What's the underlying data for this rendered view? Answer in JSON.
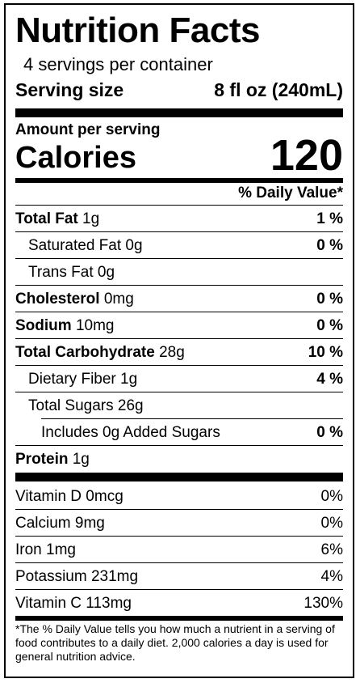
{
  "label": {
    "title": "Nutrition Facts",
    "servings_per_container": "4 servings per container",
    "serving_size_label": "Serving size",
    "serving_size_value": "8 fl oz (240mL)",
    "amount_per_serving": "Amount per serving",
    "calories_label": "Calories",
    "calories_value": "120",
    "dv_header": "% Daily Value*"
  },
  "nutrients": [
    {
      "name": "Total Fat",
      "amount": "1g",
      "dv": "1 %"
    },
    {
      "name": "Saturated Fat",
      "amount": "0g",
      "dv": "0 %"
    },
    {
      "name": "Trans Fat",
      "amount": "0g",
      "dv": ""
    },
    {
      "name": "Cholesterol",
      "amount": "0mg",
      "dv": "0 %"
    },
    {
      "name": "Sodium",
      "amount": "10mg",
      "dv": "0 %"
    },
    {
      "name": "Total Carbohydrate",
      "amount": "28g",
      "dv": "10 %"
    },
    {
      "name": "Dietary Fiber",
      "amount": "1g",
      "dv": "4 %"
    },
    {
      "name": "Total Sugars",
      "amount": "26g",
      "dv": ""
    },
    {
      "name": "Includes 0g Added Sugars",
      "amount": "",
      "dv": "0 %"
    },
    {
      "name": "Protein",
      "amount": "1g",
      "dv": ""
    }
  ],
  "vitamins": [
    {
      "name": "Vitamin D",
      "amount": "0mcg",
      "dv": "0%"
    },
    {
      "name": "Calcium",
      "amount": "9mg",
      "dv": "0%"
    },
    {
      "name": "Iron",
      "amount": "1mg",
      "dv": "6%"
    },
    {
      "name": "Potassium",
      "amount": "231mg",
      "dv": "4%"
    },
    {
      "name": "Vitamin C",
      "amount": "113mg",
      "dv": "130%"
    }
  ],
  "footnote": "*The % Daily Value tells you how much a nutrient in a serving of food contributes to a daily diet. 2,000 calories a day is used for general nutrition advice."
}
